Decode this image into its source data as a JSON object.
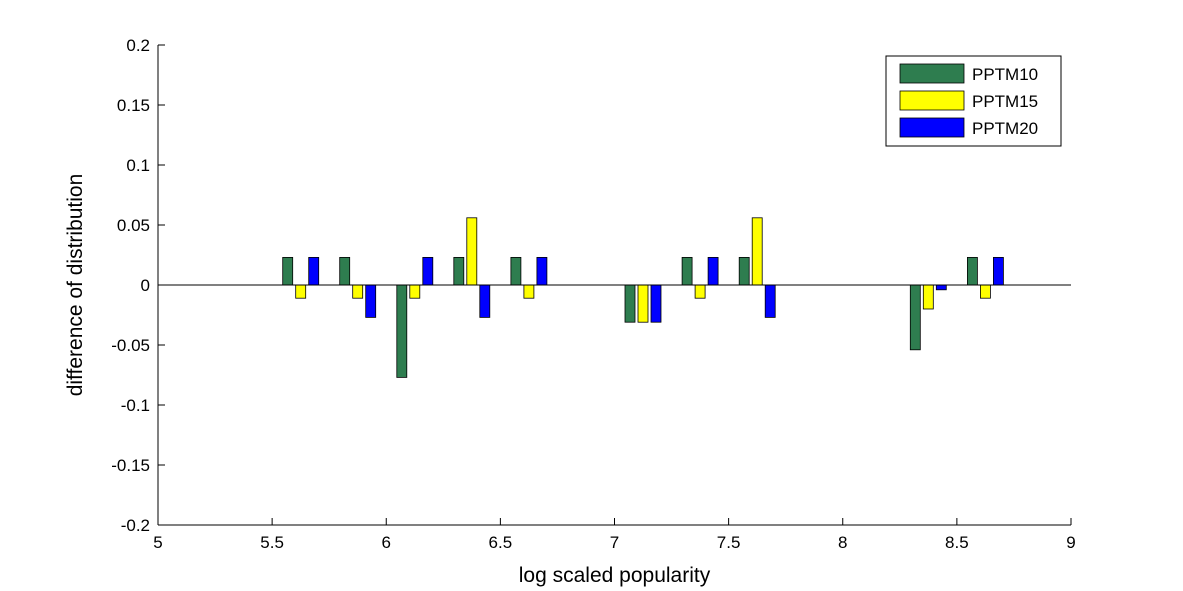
{
  "chart_data": {
    "type": "bar",
    "title": "",
    "xlabel": "log scaled popularity",
    "ylabel": "difference of distribution",
    "xlim": [
      5,
      9
    ],
    "ylim": [
      -0.2,
      0.2
    ],
    "xticks": [
      5,
      5.5,
      6,
      6.5,
      7,
      7.5,
      8,
      8.5,
      9
    ],
    "yticks": [
      -0.2,
      -0.15,
      -0.1,
      -0.05,
      0,
      0.05,
      0.1,
      0.15,
      0.2
    ],
    "xtick_labels": [
      "5",
      "5.5",
      "6",
      "6.5",
      "7",
      "7.5",
      "8",
      "8.5",
      "9"
    ],
    "ytick_labels": [
      "-0.2",
      "-0.15",
      "-0.1",
      "-0.05",
      "0",
      "0.05",
      "0.1",
      "0.15",
      "0.2"
    ],
    "grid": false,
    "legend_position": "top-right",
    "x": [
      5.625,
      5.875,
      6.125,
      6.375,
      6.625,
      7.125,
      7.375,
      7.625,
      8.375,
      8.625
    ],
    "series": [
      {
        "name": "PPTM10",
        "color": "#2e7d4f",
        "values": [
          0.023,
          0.023,
          -0.077,
          0.023,
          0.023,
          -0.031,
          0.023,
          0.023,
          -0.054,
          0.023
        ]
      },
      {
        "name": "PPTM15",
        "color": "#ffff00",
        "values": [
          -0.011,
          -0.011,
          -0.011,
          0.056,
          -0.011,
          -0.031,
          -0.011,
          0.056,
          -0.02,
          -0.011
        ]
      },
      {
        "name": "PPTM20",
        "color": "#0000ff",
        "values": [
          0.023,
          -0.027,
          0.023,
          -0.027,
          0.023,
          -0.031,
          0.023,
          -0.027,
          -0.004,
          0.023
        ]
      }
    ]
  }
}
